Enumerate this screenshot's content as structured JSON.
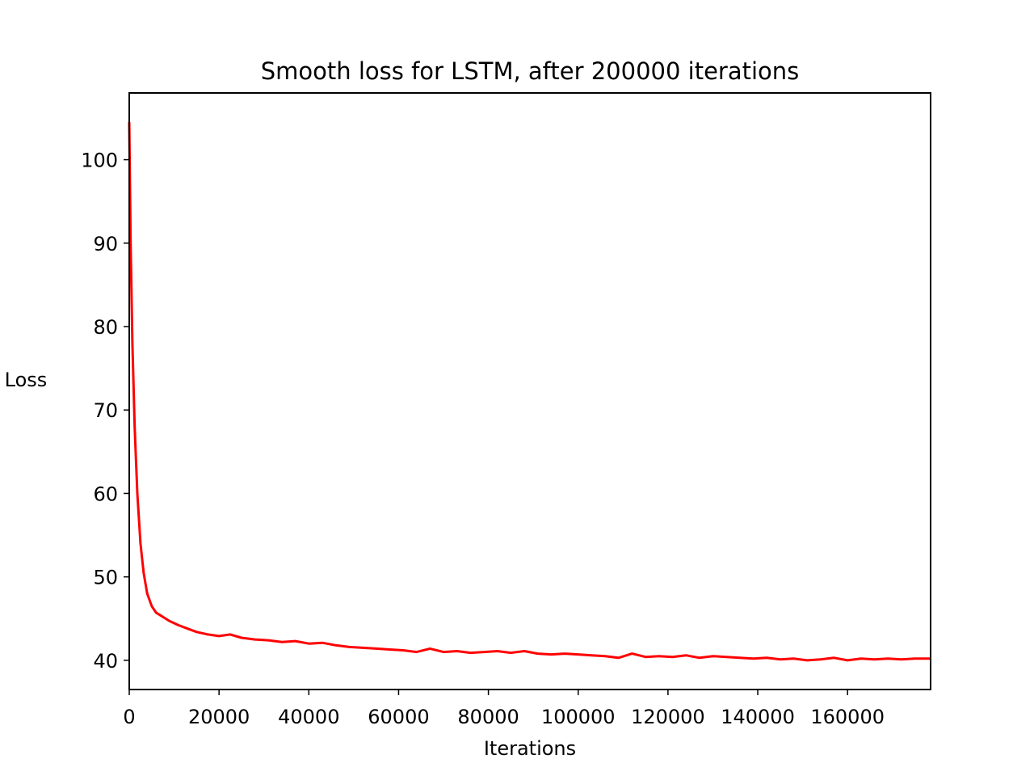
{
  "chart_data": {
    "type": "line",
    "title": "Smooth loss for LSTM, after 200000 iterations",
    "xlabel": "Iterations",
    "ylabel": "Loss",
    "xlim": [
      0,
      178500
    ],
    "ylim": [
      36.5,
      108
    ],
    "xticks": [
      0,
      20000,
      40000,
      60000,
      80000,
      100000,
      120000,
      140000,
      160000
    ],
    "xtick_labels": [
      "0",
      "20000",
      "40000",
      "60000",
      "80000",
      "100000",
      "120000",
      "140000",
      "160000"
    ],
    "yticks": [
      40,
      50,
      60,
      70,
      80,
      90,
      100
    ],
    "ytick_labels": [
      "40",
      "50",
      "60",
      "70",
      "80",
      "90",
      "100"
    ],
    "grid": false,
    "legend": "none",
    "series": [
      {
        "color": "#ff0000",
        "x": [
          0,
          300,
          700,
          1200,
          1800,
          2500,
          3200,
          4000,
          5000,
          6000,
          7500,
          9000,
          11000,
          13000,
          15000,
          17500,
          20000,
          22500,
          25000,
          28000,
          31000,
          34000,
          37000,
          40000,
          43000,
          46000,
          49000,
          52000,
          55000,
          58000,
          61000,
          64000,
          67000,
          70000,
          73000,
          76000,
          79000,
          82000,
          85000,
          88000,
          91000,
          94000,
          97000,
          100000,
          103000,
          106000,
          109000,
          112000,
          115000,
          118000,
          121000,
          124000,
          127000,
          130000,
          133000,
          136000,
          139000,
          142000,
          145000,
          148000,
          151000,
          154000,
          157000,
          160000,
          163000,
          166000,
          169000,
          172000,
          175000,
          178500
        ],
        "y": [
          104.5,
          90,
          78,
          68,
          60,
          54,
          50.5,
          48,
          46.5,
          45.7,
          45.2,
          44.7,
          44.2,
          43.8,
          43.4,
          43.1,
          42.9,
          43.1,
          42.7,
          42.5,
          42.4,
          42.2,
          42.3,
          42.0,
          42.1,
          41.8,
          41.6,
          41.5,
          41.4,
          41.3,
          41.2,
          41.0,
          41.4,
          41.0,
          41.1,
          40.9,
          41.0,
          41.1,
          40.9,
          41.1,
          40.8,
          40.7,
          40.8,
          40.7,
          40.6,
          40.5,
          40.3,
          40.8,
          40.4,
          40.5,
          40.4,
          40.6,
          40.3,
          40.5,
          40.4,
          40.3,
          40.2,
          40.3,
          40.1,
          40.2,
          40.0,
          40.1,
          40.3,
          40.0,
          40.2,
          40.1,
          40.2,
          40.1,
          40.2,
          40.2
        ]
      }
    ]
  }
}
